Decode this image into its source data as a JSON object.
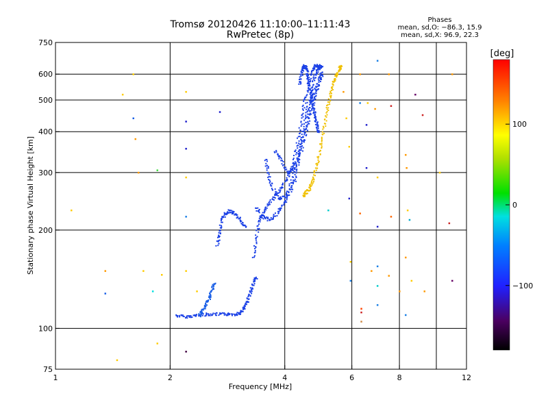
{
  "chart_data": {
    "type": "scatter",
    "title": [
      "Tromsø 20120426 11:10:00–11:11:43",
      "RwPretec (8p)"
    ],
    "xlabel": "Frequency [MHz]",
    "ylabel": "Stationary phase Virtual Height [km]",
    "x_scale": "log",
    "y_scale": "log",
    "xlim": [
      1,
      12
    ],
    "ylim": [
      75,
      750
    ],
    "x_ticks": [
      1,
      2,
      4,
      6,
      8,
      10,
      12
    ],
    "x_tick_labels": [
      "1",
      "2",
      "4",
      "6",
      "8",
      "",
      "12"
    ],
    "x_grid": [
      2,
      4,
      6,
      8,
      10
    ],
    "y_ticks": [
      75,
      100,
      200,
      300,
      400,
      500,
      600,
      750
    ],
    "y_tick_labels": [
      "75",
      "100",
      "200",
      "300",
      "400",
      "500",
      "600",
      "750"
    ],
    "y_grid": [
      100,
      200,
      300,
      400,
      500,
      600
    ],
    "phase_stats": {
      "title": "Phases",
      "line_o": "mean, sd,O: −86.3, 15.9",
      "line_x": "mean, sd,X:  96.9, 22.3"
    },
    "colorbar": {
      "label": "[deg]",
      "range": [
        -180,
        180
      ],
      "ticks": [
        -100,
        0,
        100
      ],
      "tick_labels": [
        "−100",
        "0",
        "100"
      ]
    },
    "traces": [
      {
        "name": "o-low-branch",
        "color": "#1a40e6",
        "points": [
          [
            2.07,
            110
          ],
          [
            2.2,
            109
          ],
          [
            2.35,
            110
          ],
          [
            2.5,
            111
          ],
          [
            2.65,
            111
          ],
          [
            2.8,
            111
          ],
          [
            2.95,
            111
          ],
          [
            3.05,
            112
          ],
          [
            3.12,
            116
          ],
          [
            3.18,
            122
          ],
          [
            3.24,
            130
          ],
          [
            3.3,
            138
          ],
          [
            3.35,
            144
          ]
        ]
      },
      {
        "name": "o-low-secondary",
        "color": "#1a5fe6",
        "points": [
          [
            2.38,
            110
          ],
          [
            2.42,
            113
          ],
          [
            2.47,
            118
          ],
          [
            2.52,
            124
          ],
          [
            2.56,
            131
          ],
          [
            2.62,
            138
          ]
        ]
      },
      {
        "name": "o-mid-branch",
        "color": "#1a40e6",
        "points": [
          [
            2.65,
            180
          ],
          [
            2.68,
            195
          ],
          [
            2.72,
            215
          ],
          [
            2.78,
            225
          ],
          [
            2.85,
            230
          ],
          [
            2.95,
            225
          ],
          [
            3.05,
            215
          ],
          [
            3.15,
            205
          ]
        ]
      },
      {
        "name": "o-F-trace-1",
        "color": "#1a40e6",
        "points": [
          [
            3.3,
            165
          ],
          [
            3.35,
            190
          ],
          [
            3.42,
            215
          ],
          [
            3.52,
            230
          ],
          [
            3.65,
            245
          ],
          [
            3.8,
            260
          ],
          [
            3.95,
            275
          ],
          [
            4.1,
            300
          ],
          [
            4.2,
            320
          ],
          [
            4.3,
            370
          ],
          [
            4.4,
            430
          ],
          [
            4.5,
            500
          ],
          [
            4.6,
            560
          ],
          [
            4.7,
            620
          ],
          [
            4.8,
            640
          ],
          [
            4.9,
            640
          ],
          [
            5.0,
            635
          ]
        ]
      },
      {
        "name": "o-F-trace-2",
        "color": "#1a40e6",
        "points": [
          [
            3.35,
            235
          ],
          [
            3.5,
            220
          ],
          [
            3.65,
            215
          ],
          [
            3.8,
            225
          ],
          [
            3.95,
            240
          ],
          [
            4.1,
            260
          ],
          [
            4.25,
            290
          ],
          [
            4.35,
            340
          ],
          [
            4.45,
            400
          ],
          [
            4.55,
            460
          ],
          [
            4.65,
            520
          ],
          [
            4.75,
            580
          ],
          [
            4.85,
            620
          ],
          [
            4.95,
            630
          ]
        ]
      },
      {
        "name": "o-F-trace-3",
        "color": "#1a40e6",
        "points": [
          [
            3.55,
            330
          ],
          [
            3.6,
            300
          ],
          [
            3.7,
            270
          ],
          [
            3.85,
            250
          ],
          [
            4.0,
            255
          ],
          [
            4.15,
            280
          ],
          [
            4.3,
            330
          ],
          [
            4.45,
            380
          ],
          [
            4.6,
            450
          ],
          [
            4.75,
            520
          ],
          [
            4.9,
            580
          ],
          [
            5.0,
            610
          ]
        ]
      },
      {
        "name": "o-F-trace-4",
        "color": "#1a40e6",
        "points": [
          [
            3.75,
            350
          ],
          [
            3.9,
            330
          ],
          [
            4.05,
            300
          ],
          [
            4.2,
            310
          ],
          [
            4.4,
            350
          ],
          [
            4.55,
            410
          ],
          [
            4.7,
            480
          ],
          [
            4.85,
            540
          ],
          [
            5.0,
            600
          ]
        ]
      },
      {
        "name": "o-upper-spread",
        "color": "#1a40e6",
        "points": [
          [
            4.35,
            560
          ],
          [
            4.4,
            600
          ],
          [
            4.45,
            630
          ],
          [
            4.5,
            640
          ],
          [
            4.55,
            620
          ],
          [
            4.6,
            580
          ],
          [
            4.65,
            540
          ],
          [
            4.7,
            500
          ],
          [
            4.75,
            470
          ],
          [
            4.8,
            440
          ],
          [
            4.85,
            420
          ],
          [
            4.9,
            400
          ]
        ]
      },
      {
        "name": "x-trace",
        "color": "#f0c000",
        "points": [
          [
            4.45,
            255
          ],
          [
            4.55,
            262
          ],
          [
            4.65,
            272
          ],
          [
            4.75,
            290
          ],
          [
            4.85,
            320
          ],
          [
            4.95,
            360
          ],
          [
            5.05,
            410
          ],
          [
            5.15,
            470
          ],
          [
            5.25,
            520
          ],
          [
            5.35,
            570
          ],
          [
            5.45,
            600
          ],
          [
            5.55,
            630
          ],
          [
            5.6,
            640
          ]
        ]
      }
    ],
    "scattered_points": [
      {
        "x": 1.1,
        "y": 230,
        "color": "#ffcc00"
      },
      {
        "x": 1.35,
        "y": 150,
        "color": "#ff9900"
      },
      {
        "x": 1.35,
        "y": 128,
        "color": "#1a60e6"
      },
      {
        "x": 1.45,
        "y": 80,
        "color": "#ffcc00"
      },
      {
        "x": 1.5,
        "y": 520,
        "color": "#ffcc00"
      },
      {
        "x": 1.6,
        "y": 600,
        "color": "#ffcc00"
      },
      {
        "x": 1.6,
        "y": 440,
        "color": "#1a60e6"
      },
      {
        "x": 1.62,
        "y": 380,
        "color": "#ff9900"
      },
      {
        "x": 1.65,
        "y": 300,
        "color": "#ff9900"
      },
      {
        "x": 1.7,
        "y": 150,
        "color": "#ffcc00"
      },
      {
        "x": 1.8,
        "y": 130,
        "color": "#00e0e0"
      },
      {
        "x": 1.85,
        "y": 305,
        "color": "#44dd44"
      },
      {
        "x": 1.85,
        "y": 90,
        "color": "#ffcc00"
      },
      {
        "x": 1.9,
        "y": 146,
        "color": "#ffcc00"
      },
      {
        "x": 2.2,
        "y": 530,
        "color": "#ffcc00"
      },
      {
        "x": 2.2,
        "y": 430,
        "color": "#2020cc"
      },
      {
        "x": 2.2,
        "y": 355,
        "color": "#2020cc"
      },
      {
        "x": 2.2,
        "y": 290,
        "color": "#ffcc00"
      },
      {
        "x": 2.2,
        "y": 220,
        "color": "#1a80e6"
      },
      {
        "x": 2.2,
        "y": 150,
        "color": "#ffcc00"
      },
      {
        "x": 2.2,
        "y": 85,
        "color": "#400040"
      },
      {
        "x": 2.35,
        "y": 130,
        "color": "#ffcc00"
      },
      {
        "x": 2.7,
        "y": 460,
        "color": "#2020cc"
      },
      {
        "x": 5.2,
        "y": 230,
        "color": "#00cccc"
      },
      {
        "x": 5.5,
        "y": 600,
        "color": "#ffcc00"
      },
      {
        "x": 5.7,
        "y": 530,
        "color": "#ff9900"
      },
      {
        "x": 5.8,
        "y": 440,
        "color": "#ffcc00"
      },
      {
        "x": 5.9,
        "y": 360,
        "color": "#ffcc00"
      },
      {
        "x": 5.9,
        "y": 250,
        "color": "#2020cc"
      },
      {
        "x": 5.95,
        "y": 140,
        "color": "#1a80e6"
      },
      {
        "x": 5.95,
        "y": 160,
        "color": "#ffcc00"
      },
      {
        "x": 6.3,
        "y": 600,
        "color": "#ff9900"
      },
      {
        "x": 6.3,
        "y": 490,
        "color": "#1a80e6"
      },
      {
        "x": 6.3,
        "y": 225,
        "color": "#ff6600"
      },
      {
        "x": 6.35,
        "y": 115,
        "color": "#ff4400"
      },
      {
        "x": 6.35,
        "y": 112,
        "color": "#cc2222"
      },
      {
        "x": 6.35,
        "y": 105,
        "color": "#cc8844"
      },
      {
        "x": 6.55,
        "y": 420,
        "color": "#2020cc"
      },
      {
        "x": 6.55,
        "y": 310,
        "color": "#2020cc"
      },
      {
        "x": 6.6,
        "y": 490,
        "color": "#ffcc00"
      },
      {
        "x": 6.75,
        "y": 150,
        "color": "#ff9900"
      },
      {
        "x": 6.9,
        "y": 470,
        "color": "#ff9900"
      },
      {
        "x": 7.0,
        "y": 660,
        "color": "#1a80e6"
      },
      {
        "x": 7.0,
        "y": 290,
        "color": "#ffcc00"
      },
      {
        "x": 7.0,
        "y": 205,
        "color": "#2020cc"
      },
      {
        "x": 7.0,
        "y": 155,
        "color": "#1a80e6"
      },
      {
        "x": 7.0,
        "y": 135,
        "color": "#00cccc"
      },
      {
        "x": 7.0,
        "y": 118,
        "color": "#1a80e6"
      },
      {
        "x": 7.5,
        "y": 600,
        "color": "#ff9900"
      },
      {
        "x": 7.6,
        "y": 480,
        "color": "#cc2222"
      },
      {
        "x": 7.6,
        "y": 220,
        "color": "#ff6600"
      },
      {
        "x": 7.5,
        "y": 145,
        "color": "#ff9900"
      },
      {
        "x": 8.0,
        "y": 130,
        "color": "#ff9900"
      },
      {
        "x": 8.3,
        "y": 340,
        "color": "#ff9900"
      },
      {
        "x": 8.35,
        "y": 310,
        "color": "#ff9900"
      },
      {
        "x": 8.4,
        "y": 230,
        "color": "#ffcc00"
      },
      {
        "x": 8.3,
        "y": 165,
        "color": "#ff9900"
      },
      {
        "x": 8.3,
        "y": 110,
        "color": "#1a80e6"
      },
      {
        "x": 8.5,
        "y": 215,
        "color": "#00aacc"
      },
      {
        "x": 8.6,
        "y": 140,
        "color": "#ffcc00"
      },
      {
        "x": 8.8,
        "y": 520,
        "color": "#660066"
      },
      {
        "x": 9.2,
        "y": 450,
        "color": "#cc2222"
      },
      {
        "x": 9.3,
        "y": 130,
        "color": "#ff9900"
      },
      {
        "x": 10.2,
        "y": 300,
        "color": "#ffcc00"
      },
      {
        "x": 10.8,
        "y": 210,
        "color": "#cc2222"
      },
      {
        "x": 11.0,
        "y": 140,
        "color": "#660066"
      },
      {
        "x": 11.0,
        "y": 600,
        "color": "#ff9900"
      }
    ]
  }
}
